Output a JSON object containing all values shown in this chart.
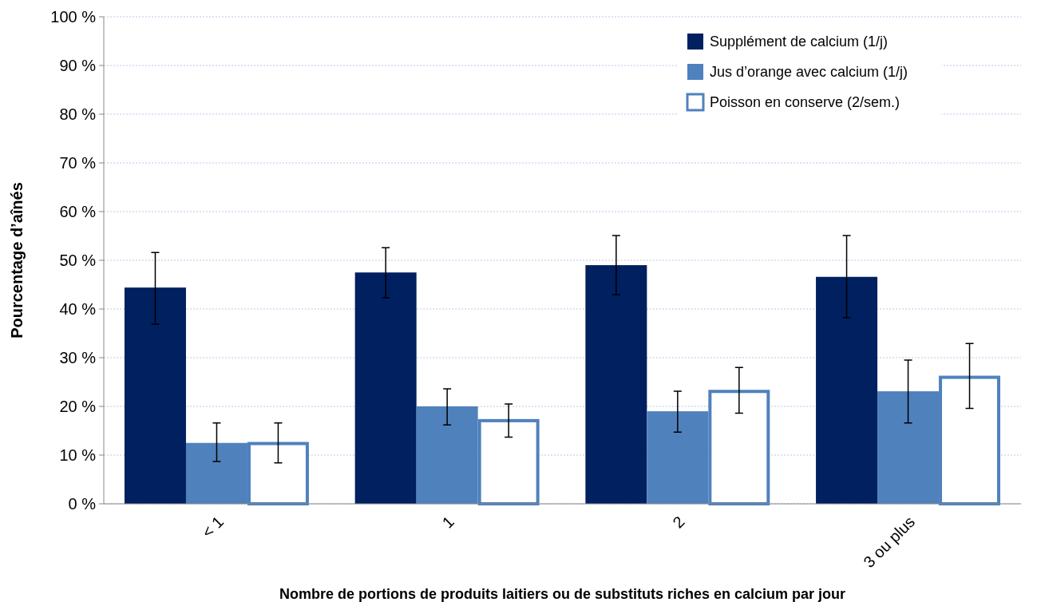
{
  "chart_data": {
    "type": "bar",
    "xlabel": "Nombre de portions de produits laitiers ou de substituts riches en calcium par jour",
    "ylabel": "Pourcentage d’aînés",
    "categories": [
      "< 1",
      "1",
      "2",
      "3 ou plus"
    ],
    "series": [
      {
        "name": "Supplément de calcium (1/j)",
        "color": "#002060",
        "values": [
          44.4,
          47.5,
          49,
          46.6
        ],
        "errors": [
          [
            36.9,
            51.6
          ],
          [
            42.3,
            52.6
          ],
          [
            42.9,
            55.1
          ],
          [
            38.2,
            55.1
          ]
        ]
      },
      {
        "name": "Jus d’orange avec calcium (1/j)",
        "color": "#4f81bd",
        "values": [
          12.5,
          20,
          19,
          23.1
        ],
        "errors": [
          [
            8.7,
            16.6
          ],
          [
            16.2,
            23.6
          ],
          [
            14.7,
            23.1
          ],
          [
            16.6,
            29.5
          ]
        ]
      },
      {
        "name": "Poisson en conserve (2/sem.)",
        "color": "#ffffff",
        "values": [
          12.7,
          17.4,
          23.4,
          26.3
        ],
        "errors": [
          [
            8.4,
            16.6
          ],
          [
            13.7,
            20.5
          ],
          [
            18.6,
            28
          ],
          [
            19.6,
            32.9
          ]
        ]
      }
    ],
    "ylim": [
      0,
      100
    ],
    "yticks": [
      {
        "value": 0,
        "label": "0 %"
      },
      {
        "value": 10,
        "label": "10 %"
      },
      {
        "value": 20,
        "label": "20 %"
      },
      {
        "value": 30,
        "label": "30 %"
      },
      {
        "value": 40,
        "label": "40 %"
      },
      {
        "value": 50,
        "label": "50 %"
      },
      {
        "value": 60,
        "label": "60 %"
      },
      {
        "value": 70,
        "label": "70 %"
      },
      {
        "value": 80,
        "label": "80 %"
      },
      {
        "value": 90,
        "label": "90 %"
      },
      {
        "value": 100,
        "label": "100 %"
      }
    ],
    "grid": "y",
    "legend": "top right"
  }
}
